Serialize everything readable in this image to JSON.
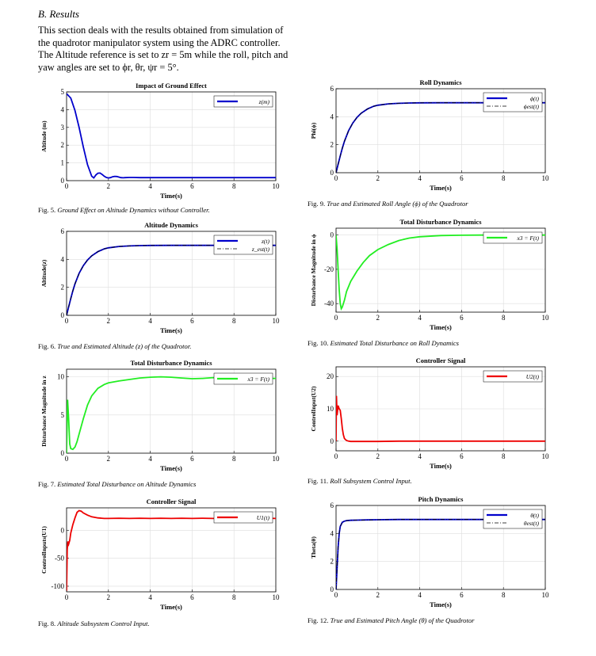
{
  "section": {
    "title": "B.  Results",
    "paragraph": "This section deals with the results obtained from simulation of the quadrotor manipulator system using the ADRC controller. The Altitude reference is set to zr = 5m while the roll, pitch and yaw angles are set to ϕr, θr, ψr = 5°."
  },
  "colors": {
    "blue": "#0000cc",
    "green": "#22ee22",
    "red": "#ee0000"
  },
  "figures": [
    {
      "label": "Fig. 5.",
      "caption": "Ground Effect on Altitude Dynamics without Controller.",
      "chart_data": {
        "type": "line",
        "title": "Impact of Ground Effect",
        "xlabel": "Time(s)",
        "ylabel": "Altitude (m)",
        "xlim": [
          0,
          10
        ],
        "ylim": [
          0,
          5
        ],
        "xticks": [
          "0",
          "2",
          "4",
          "6",
          "8",
          "10"
        ],
        "yticks": [
          "0",
          "1",
          "2",
          "3",
          "4",
          "5"
        ],
        "legend": [
          "z(m)"
        ],
        "legend_position": "top-right",
        "grid": true,
        "series": [
          {
            "name": "z(m)",
            "color": "blue",
            "style": "solid",
            "x": [
              0,
              0.2,
              0.4,
              0.6,
              0.8,
              1.0,
              1.2,
              1.3,
              1.4,
              1.5,
              1.6,
              1.7,
              1.8,
              1.9,
              2.0,
              2.1,
              2.2,
              2.3,
              2.4,
              2.5,
              2.6,
              2.7,
              2.8,
              3.0,
              3.2,
              3.5,
              4,
              5,
              6,
              7,
              8,
              9,
              10
            ],
            "y": [
              4.9,
              4.65,
              3.95,
              3.0,
              1.9,
              0.9,
              0.25,
              0.15,
              0.32,
              0.42,
              0.43,
              0.35,
              0.25,
              0.18,
              0.15,
              0.17,
              0.22,
              0.24,
              0.23,
              0.2,
              0.17,
              0.16,
              0.17,
              0.18,
              0.18,
              0.17,
              0.17,
              0.17,
              0.17,
              0.17,
              0.17,
              0.17,
              0.17
            ]
          }
        ]
      }
    },
    {
      "label": "Fig. 6.",
      "caption": "True and Estimated Altitude (z) of the Quadrotor.",
      "chart_data": {
        "type": "line",
        "title": "Altitude Dynamics",
        "xlabel": "Time(s)",
        "ylabel": "Altitude(z)",
        "xlim": [
          0,
          10
        ],
        "ylim": [
          0,
          6
        ],
        "xticks": [
          "0",
          "2",
          "4",
          "6",
          "8",
          "10"
        ],
        "yticks": [
          "0",
          "2",
          "4",
          "6"
        ],
        "legend": [
          "z(t)",
          "z_est(t)"
        ],
        "legend_position": "top-right",
        "grid": true,
        "series": [
          {
            "name": "z(t)",
            "color": "blue",
            "style": "solid",
            "x": [
              0,
              0.1,
              0.2,
              0.3,
              0.4,
              0.6,
              0.8,
              1.0,
              1.2,
              1.5,
              1.8,
              2.0,
              2.5,
              3,
              3.5,
              4,
              5,
              6,
              7,
              8,
              9,
              10
            ],
            "y": [
              0,
              0.6,
              1.2,
              1.75,
              2.25,
              3.0,
              3.55,
              3.95,
              4.25,
              4.55,
              4.75,
              4.82,
              4.92,
              4.96,
              4.98,
              4.99,
              5,
              5,
              5,
              5,
              5,
              5
            ]
          },
          {
            "name": "z_est(t)",
            "color": "black",
            "style": "dashdot",
            "x": [
              0,
              0.1,
              0.2,
              0.3,
              0.4,
              0.6,
              0.8,
              1.0,
              1.2,
              1.5,
              1.8,
              2.0,
              2.5,
              3,
              3.5,
              4,
              5,
              6,
              7,
              8,
              9,
              10
            ],
            "y": [
              0,
              0.6,
              1.2,
              1.75,
              2.25,
              3.0,
              3.55,
              3.95,
              4.25,
              4.55,
              4.75,
              4.82,
              4.92,
              4.96,
              4.98,
              4.99,
              5,
              5,
              5,
              5,
              5,
              5
            ]
          }
        ]
      }
    },
    {
      "label": "Fig. 7.",
      "caption": "Estimated Total Disturbance on Altitude Dynamics",
      "chart_data": {
        "type": "line",
        "title": "Total Disturbance Dynamics",
        "xlabel": "Time(s)",
        "ylabel": "Disturbance Magnitude in z",
        "xlim": [
          0,
          10
        ],
        "ylim": [
          0,
          11
        ],
        "xticks": [
          "0",
          "2",
          "4",
          "6",
          "8",
          "10"
        ],
        "yticks": [
          "0",
          "5",
          "10"
        ],
        "legend": [
          "x3 = F(t)"
        ],
        "legend_position": "top-right",
        "grid": true,
        "series": [
          {
            "name": "x3 = F(t)",
            "color": "green",
            "style": "solid",
            "x": [
              0,
              0.05,
              0.1,
              0.15,
              0.2,
              0.3,
              0.4,
              0.5,
              0.6,
              0.8,
              1.0,
              1.2,
              1.5,
              1.8,
              2.0,
              2.5,
              3,
              3.5,
              4,
              4.5,
              5,
              5.5,
              6,
              6.5,
              7,
              7.5,
              8,
              8.5,
              9,
              9.5,
              10
            ],
            "y": [
              0,
              7,
              4.5,
              1.2,
              0.6,
              0.5,
              0.8,
              1.5,
              2.5,
              4.5,
              6.3,
              7.5,
              8.5,
              9.0,
              9.2,
              9.45,
              9.65,
              9.85,
              9.95,
              10.0,
              9.95,
              9.85,
              9.75,
              9.8,
              9.9,
              9.85,
              9.75,
              9.8,
              9.85,
              9.8,
              9.8
            ]
          }
        ]
      }
    },
    {
      "label": "Fig. 8.",
      "caption": "Altitude Subsystem Control Input.",
      "chart_data": {
        "type": "line",
        "title": "Controller Signal",
        "xlabel": "Time(s)",
        "ylabel": "ControlInputs(U1)",
        "xlim": [
          0,
          10
        ],
        "ylim": [
          -110,
          40
        ],
        "xticks": [
          "0",
          "2",
          "4",
          "6",
          "8",
          "10"
        ],
        "yticks": [
          "-100",
          "-50",
          "0"
        ],
        "legend": [
          "U1(t)"
        ],
        "legend_position": "top-right",
        "grid": true,
        "series": [
          {
            "name": "U1(t)",
            "color": "red",
            "style": "solid",
            "x": [
              0,
              0.03,
              0.06,
              0.1,
              0.15,
              0.2,
              0.3,
              0.4,
              0.5,
              0.6,
              0.7,
              0.8,
              1.0,
              1.2,
              1.5,
              1.8,
              2.0,
              2.5,
              3,
              3.5,
              4,
              4.5,
              5,
              5.5,
              6,
              6.5,
              7,
              7.5,
              8,
              8.5,
              9,
              9.5,
              10
            ],
            "y": [
              -108,
              -35,
              -20,
              -25,
              -18,
              -5,
              10,
              22,
              32,
              35,
              34,
              31,
              27,
              24,
              22,
              21,
              21,
              21.5,
              21,
              21.5,
              21,
              21.5,
              21,
              21.5,
              21,
              21.5,
              21,
              21.5,
              21,
              21.5,
              21,
              21.5,
              21
            ]
          }
        ]
      }
    },
    {
      "label": "Fig. 9.",
      "caption": "True and Estimated Roll Angle (ϕ) of the Quadrotor",
      "chart_data": {
        "type": "line",
        "title": "Roll Dynamics",
        "xlabel": "Time(s)",
        "ylabel": "Phi(ϕ)",
        "xlim": [
          0,
          10
        ],
        "ylim": [
          0,
          6
        ],
        "xticks": [
          "0",
          "2",
          "4",
          "6",
          "8",
          "10"
        ],
        "yticks": [
          "0",
          "2",
          "4",
          "6"
        ],
        "legend": [
          "ϕ(t)",
          "ϕest(t)"
        ],
        "legend_position": "top-right",
        "grid": true,
        "series": [
          {
            "name": "ϕ(t)",
            "color": "blue",
            "style": "solid",
            "x": [
              0,
              0.1,
              0.2,
              0.3,
              0.4,
              0.6,
              0.8,
              1.0,
              1.2,
              1.5,
              1.8,
              2.0,
              2.5,
              3,
              3.5,
              4,
              5,
              6,
              7,
              8,
              9,
              10
            ],
            "y": [
              0,
              0.6,
              1.2,
              1.75,
              2.25,
              3.0,
              3.55,
              3.95,
              4.25,
              4.55,
              4.75,
              4.82,
              4.92,
              4.96,
              4.98,
              4.99,
              5,
              5,
              5,
              5,
              5,
              5
            ]
          },
          {
            "name": "ϕest(t)",
            "color": "black",
            "style": "dashdot",
            "x": [
              0,
              0.1,
              0.2,
              0.3,
              0.4,
              0.6,
              0.8,
              1.0,
              1.2,
              1.5,
              1.8,
              2.0,
              2.5,
              3,
              3.5,
              4,
              5,
              6,
              7,
              8,
              9,
              10
            ],
            "y": [
              0,
              0.6,
              1.2,
              1.75,
              2.25,
              3.0,
              3.55,
              3.95,
              4.25,
              4.55,
              4.75,
              4.82,
              4.92,
              4.96,
              4.98,
              4.99,
              5,
              5,
              5,
              5,
              5,
              5
            ]
          }
        ]
      }
    },
    {
      "label": "Fig. 10.",
      "caption": "Estimated Total Disturbance on Roll Dynamics",
      "chart_data": {
        "type": "line",
        "title": "Total Disturbance Dynamics",
        "xlabel": "Time(s)",
        "ylabel": "Disturbance Magnitude in ϕ",
        "xlim": [
          0,
          10
        ],
        "ylim": [
          -45,
          4
        ],
        "xticks": [
          "0",
          "2",
          "4",
          "6",
          "8",
          "10"
        ],
        "yticks": [
          "-40",
          "-20",
          "0"
        ],
        "legend": [
          "x3 = F(t)"
        ],
        "legend_position": "top-right",
        "grid": true,
        "series": [
          {
            "name": "x3 = F(t)",
            "color": "green",
            "style": "solid",
            "x": [
              0,
              0.05,
              0.1,
              0.15,
              0.2,
              0.25,
              0.3,
              0.4,
              0.5,
              0.7,
              1.0,
              1.3,
              1.6,
              2.0,
              2.5,
              3,
              3.5,
              4,
              5,
              6,
              7,
              8,
              9,
              10
            ],
            "y": [
              0,
              -8,
              -20,
              -32,
              -40,
              -43,
              -42,
              -38,
              -33,
              -27,
              -21,
              -16,
              -12,
              -8.5,
              -5.5,
              -3.2,
              -1.8,
              -1,
              -0.3,
              -0.1,
              0,
              0,
              0,
              0
            ]
          }
        ]
      }
    },
    {
      "label": "Fig. 11.",
      "caption": "Roll Subsystem Control Input.",
      "chart_data": {
        "type": "line",
        "title": "Controller Signal",
        "xlabel": "Time(s)",
        "ylabel": "ControlInput(U2)",
        "xlim": [
          0,
          10
        ],
        "ylim": [
          -3,
          23
        ],
        "xticks": [
          "0",
          "2",
          "4",
          "6",
          "8",
          "10"
        ],
        "yticks": [
          "0",
          "10",
          "20"
        ],
        "legend": [
          "U2(t)"
        ],
        "legend_position": "top-right",
        "grid": true,
        "series": [
          {
            "name": "U2(t)",
            "color": "red",
            "style": "solid",
            "x": [
              0,
              0.02,
              0.05,
              0.1,
              0.15,
              0.2,
              0.25,
              0.3,
              0.35,
              0.4,
              0.5,
              0.6,
              0.7,
              0.8,
              1.0,
              1.5,
              2,
              3,
              4,
              5,
              6,
              7,
              8,
              9,
              10
            ],
            "y": [
              0,
              14,
              8,
              11,
              10,
              9.5,
              7,
              4,
              2,
              0.8,
              0.2,
              0,
              -0.1,
              -0.1,
              -0.1,
              -0.1,
              -0.1,
              0,
              0,
              0,
              0,
              0,
              0,
              0,
              0
            ]
          }
        ]
      }
    },
    {
      "label": "Fig. 12.",
      "caption": "True and Estimated Pitch Angle (θ) of the Quadrotor",
      "chart_data": {
        "type": "line",
        "title": "Pitch Dynamics",
        "xlabel": "Time(s)",
        "ylabel": "Theta(θ)",
        "xlim": [
          0,
          10
        ],
        "ylim": [
          0,
          6
        ],
        "xticks": [
          "0",
          "2",
          "4",
          "6",
          "8",
          "10"
        ],
        "yticks": [
          "0",
          "2",
          "4",
          "6"
        ],
        "legend": [
          "θ(t)",
          "θest(t)"
        ],
        "legend_position": "top-right",
        "grid": true,
        "series": [
          {
            "name": "θ(t)",
            "color": "blue",
            "style": "solid",
            "x": [
              0,
              0.05,
              0.1,
              0.15,
              0.2,
              0.3,
              0.4,
              0.5,
              0.7,
              1.0,
              1.5,
              2,
              3,
              4,
              5,
              6,
              7,
              8,
              9,
              10
            ],
            "y": [
              0,
              1.5,
              3.0,
              4.0,
              4.5,
              4.8,
              4.88,
              4.92,
              4.94,
              4.95,
              4.97,
              4.98,
              5,
              5,
              5,
              5,
              5,
              5,
              5,
              5
            ]
          },
          {
            "name": "θest(t)",
            "color": "black",
            "style": "dashdot",
            "x": [
              0,
              0.05,
              0.1,
              0.15,
              0.2,
              0.3,
              0.4,
              0.5,
              0.7,
              1.0,
              1.5,
              2,
              3,
              4,
              5,
              6,
              7,
              8,
              9,
              10
            ],
            "y": [
              0,
              1.5,
              3.0,
              4.0,
              4.5,
              4.8,
              4.88,
              4.92,
              4.94,
              4.95,
              4.97,
              4.98,
              5,
              5,
              5,
              5,
              5,
              5,
              5,
              5
            ]
          }
        ]
      }
    }
  ]
}
